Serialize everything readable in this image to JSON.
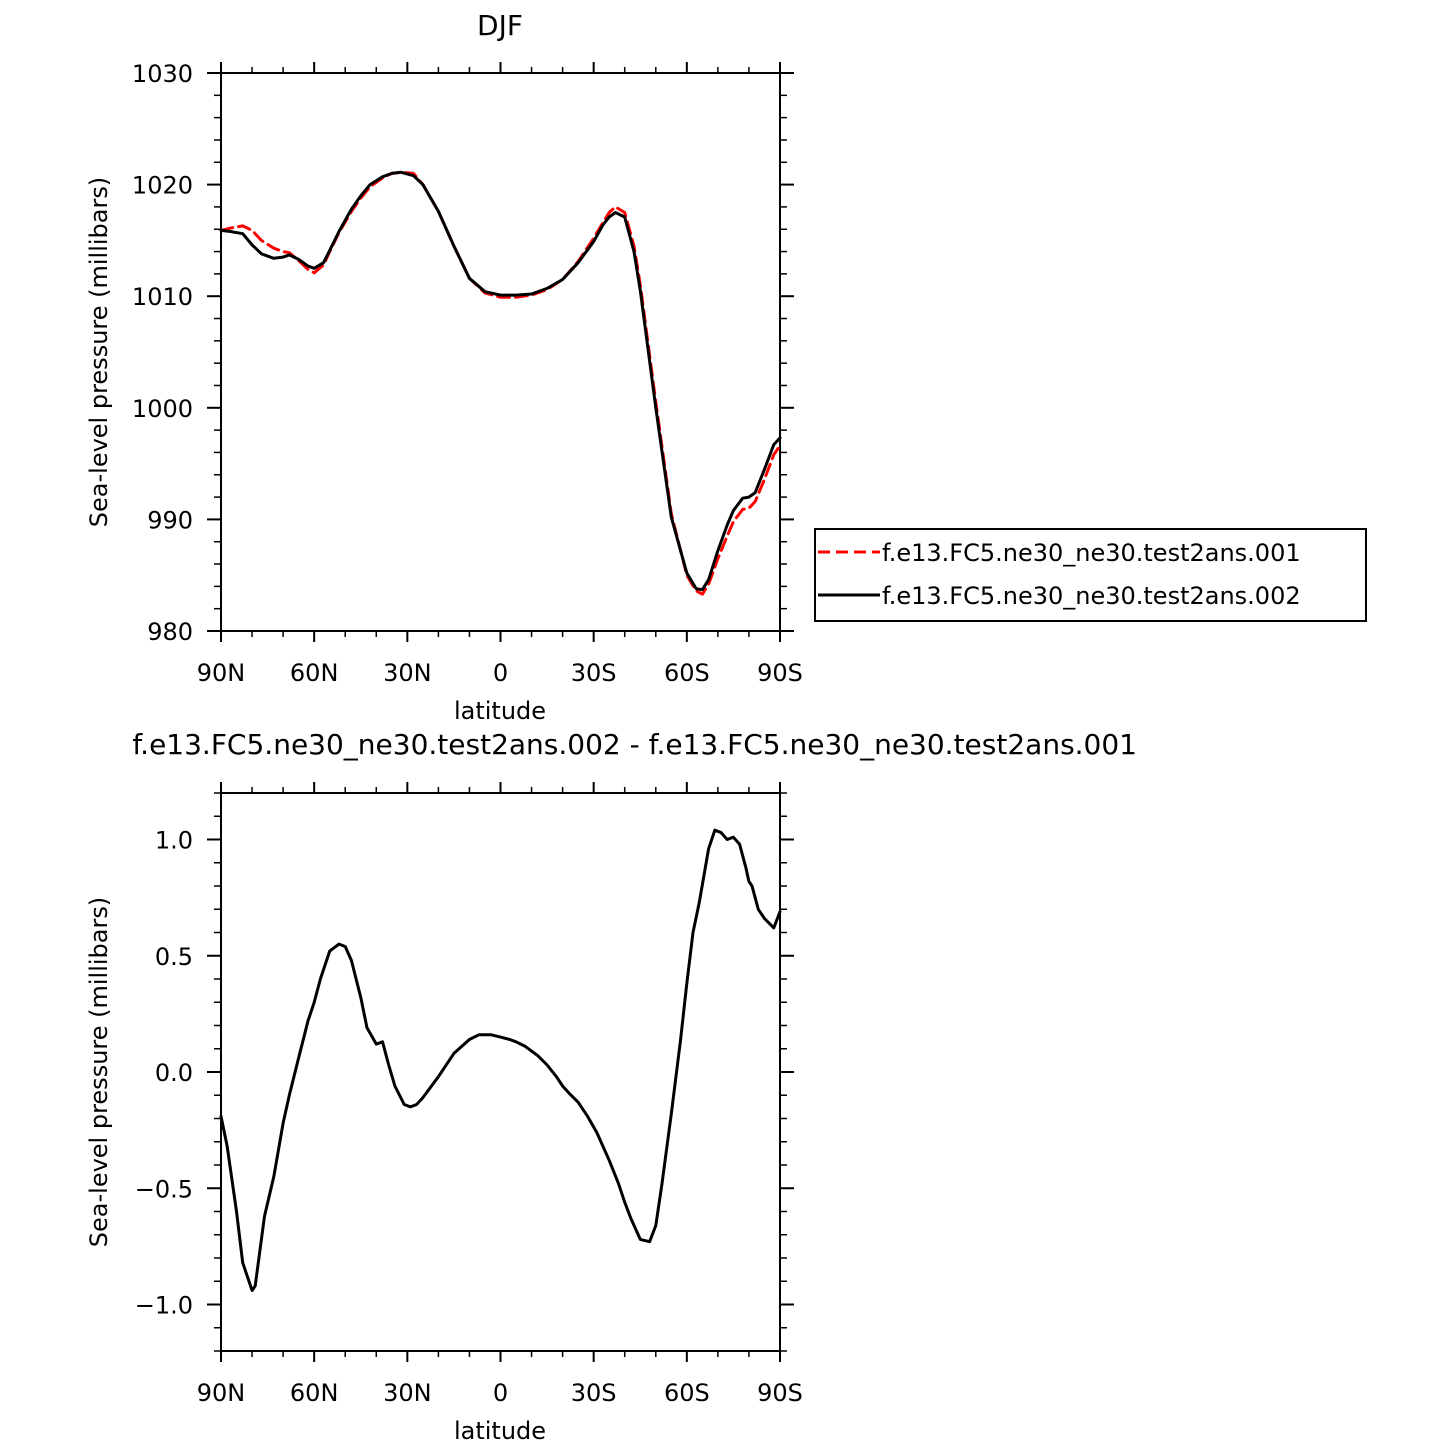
{
  "colors": {
    "run1": "#ff0000",
    "run2": "#000000",
    "diff": "#000000"
  },
  "chart_data": [
    {
      "type": "line",
      "title": "DJF",
      "xlabel": "latitude",
      "ylabel": "Sea-level pressure (millibars)",
      "xlim": [
        90,
        -90
      ],
      "ylim": [
        980,
        1030
      ],
      "xticks": [
        90,
        60,
        30,
        0,
        -30,
        -60,
        -90
      ],
      "xtick_labels": [
        "90N",
        "60N",
        "30N",
        "0",
        "30S",
        "60S",
        "90S"
      ],
      "yticks": [
        980,
        990,
        1000,
        1010,
        1020,
        1030
      ],
      "ytick_labels": [
        "980",
        "990",
        "1000",
        "1010",
        "1020",
        "1030"
      ],
      "legend_position": "right",
      "series": [
        {
          "name": "f.e13.FC5.ne30_ne30.test2ans.001",
          "style": "dashed",
          "x": [
            90,
            87,
            83,
            80,
            77,
            73,
            70,
            68,
            65,
            62,
            60,
            57,
            55,
            52,
            48,
            45,
            42,
            38,
            35,
            32,
            28,
            25,
            20,
            15,
            10,
            5,
            0,
            -5,
            -10,
            -15,
            -20,
            -25,
            -30,
            -33,
            -35,
            -37,
            -40,
            -43,
            -45,
            -50,
            -55,
            -60,
            -63,
            -65,
            -67,
            -70,
            -73,
            -75,
            -78,
            -80,
            -82,
            -85,
            -88,
            -90
          ],
          "y": [
            1015.9,
            1016.1,
            1016.3,
            1015.9,
            1015.0,
            1014.3,
            1014.0,
            1013.9,
            1013.2,
            1012.4,
            1012.1,
            1012.8,
            1014.0,
            1015.7,
            1017.6,
            1018.8,
            1019.8,
            1020.6,
            1021.0,
            1021.1,
            1021.0,
            1020.0,
            1017.6,
            1014.5,
            1011.6,
            1010.3,
            1009.9,
            1009.9,
            1010.1,
            1010.6,
            1011.5,
            1013.1,
            1015.2,
            1016.6,
            1017.5,
            1018.0,
            1017.5,
            1014.5,
            1011.0,
            1000.5,
            990.5,
            985.0,
            983.6,
            983.3,
            984.2,
            986.5,
            988.5,
            989.8,
            990.9,
            991.0,
            991.6,
            993.6,
            995.8,
            996.6
          ]
        },
        {
          "name": "f.e13.FC5.ne30_ne30.test2ans.002",
          "style": "solid",
          "x": [
            90,
            87,
            83,
            80,
            77,
            73,
            70,
            68,
            65,
            62,
            60,
            57,
            55,
            52,
            48,
            45,
            42,
            38,
            35,
            32,
            28,
            25,
            20,
            15,
            10,
            5,
            0,
            -5,
            -10,
            -15,
            -20,
            -25,
            -30,
            -33,
            -35,
            -37,
            -40,
            -43,
            -45,
            -50,
            -55,
            -60,
            -63,
            -65,
            -67,
            -70,
            -73,
            -75,
            -78,
            -80,
            -82,
            -85,
            -88,
            -90
          ],
          "y": [
            1015.9,
            1015.8,
            1015.6,
            1014.6,
            1013.8,
            1013.4,
            1013.5,
            1013.7,
            1013.3,
            1012.7,
            1012.5,
            1013.0,
            1014.1,
            1015.8,
            1017.8,
            1019.0,
            1020.0,
            1020.7,
            1021.0,
            1021.1,
            1020.8,
            1020.0,
            1017.6,
            1014.5,
            1011.6,
            1010.4,
            1010.1,
            1010.1,
            1010.2,
            1010.7,
            1011.5,
            1013.0,
            1014.9,
            1016.4,
            1017.1,
            1017.5,
            1017.1,
            1014.0,
            1010.5,
            1000.0,
            990.2,
            985.2,
            983.8,
            983.7,
            984.6,
            987.2,
            989.5,
            990.8,
            991.9,
            992.0,
            992.4,
            994.5,
            996.7,
            997.3
          ]
        }
      ]
    },
    {
      "type": "line",
      "title": "f.e13.FC5.ne30_ne30.test2ans.002 - f.e13.FC5.ne30_ne30.test2ans.001",
      "xlabel": "latitude",
      "ylabel": "Sea-level pressure (millibars)",
      "xlim": [
        90,
        -90
      ],
      "ylim": [
        -1.2,
        1.2
      ],
      "xticks": [
        90,
        60,
        30,
        0,
        -30,
        -60,
        -90
      ],
      "xtick_labels": [
        "90N",
        "60N",
        "30N",
        "0",
        "30S",
        "60S",
        "90S"
      ],
      "yticks": [
        -1.0,
        -0.5,
        0.0,
        0.5,
        1.0
      ],
      "ytick_labels": [
        "−1.0",
        "−0.5",
        "0.0",
        "0.5",
        "1.0"
      ],
      "series": [
        {
          "style": "solid",
          "x": [
            90,
            88,
            85,
            83,
            80,
            79,
            78,
            76,
            73,
            70,
            68,
            65,
            62,
            60,
            58,
            55,
            52,
            50,
            48,
            45,
            43,
            40,
            38,
            36,
            34,
            31,
            29,
            27,
            25,
            20,
            15,
            10,
            7,
            3,
            0,
            -3,
            -5,
            -8,
            -12,
            -15,
            -18,
            -20,
            -22,
            -25,
            -28,
            -31,
            -35,
            -38,
            -40,
            -42,
            -45,
            -48,
            -50,
            -52,
            -55,
            -58,
            -60,
            -62,
            -64,
            -67,
            -69,
            -71,
            -73,
            -75,
            -77,
            -79,
            -80,
            -81,
            -83,
            -85,
            -88,
            -90
          ],
          "y": [
            -0.19,
            -0.32,
            -0.6,
            -0.82,
            -0.94,
            -0.92,
            -0.82,
            -0.62,
            -0.45,
            -0.22,
            -0.1,
            0.06,
            0.22,
            0.3,
            0.4,
            0.52,
            0.55,
            0.54,
            0.48,
            0.32,
            0.19,
            0.12,
            0.13,
            0.03,
            -0.06,
            -0.14,
            -0.15,
            -0.14,
            -0.11,
            -0.02,
            0.08,
            0.14,
            0.16,
            0.16,
            0.15,
            0.14,
            0.13,
            0.11,
            0.07,
            0.03,
            -0.02,
            -0.06,
            -0.09,
            -0.13,
            -0.19,
            -0.26,
            -0.38,
            -0.48,
            -0.56,
            -0.63,
            -0.72,
            -0.73,
            -0.66,
            -0.48,
            -0.18,
            0.14,
            0.38,
            0.6,
            0.73,
            0.96,
            1.04,
            1.03,
            1.0,
            1.01,
            0.98,
            0.88,
            0.82,
            0.8,
            0.7,
            0.66,
            0.62,
            0.69
          ]
        }
      ]
    }
  ]
}
